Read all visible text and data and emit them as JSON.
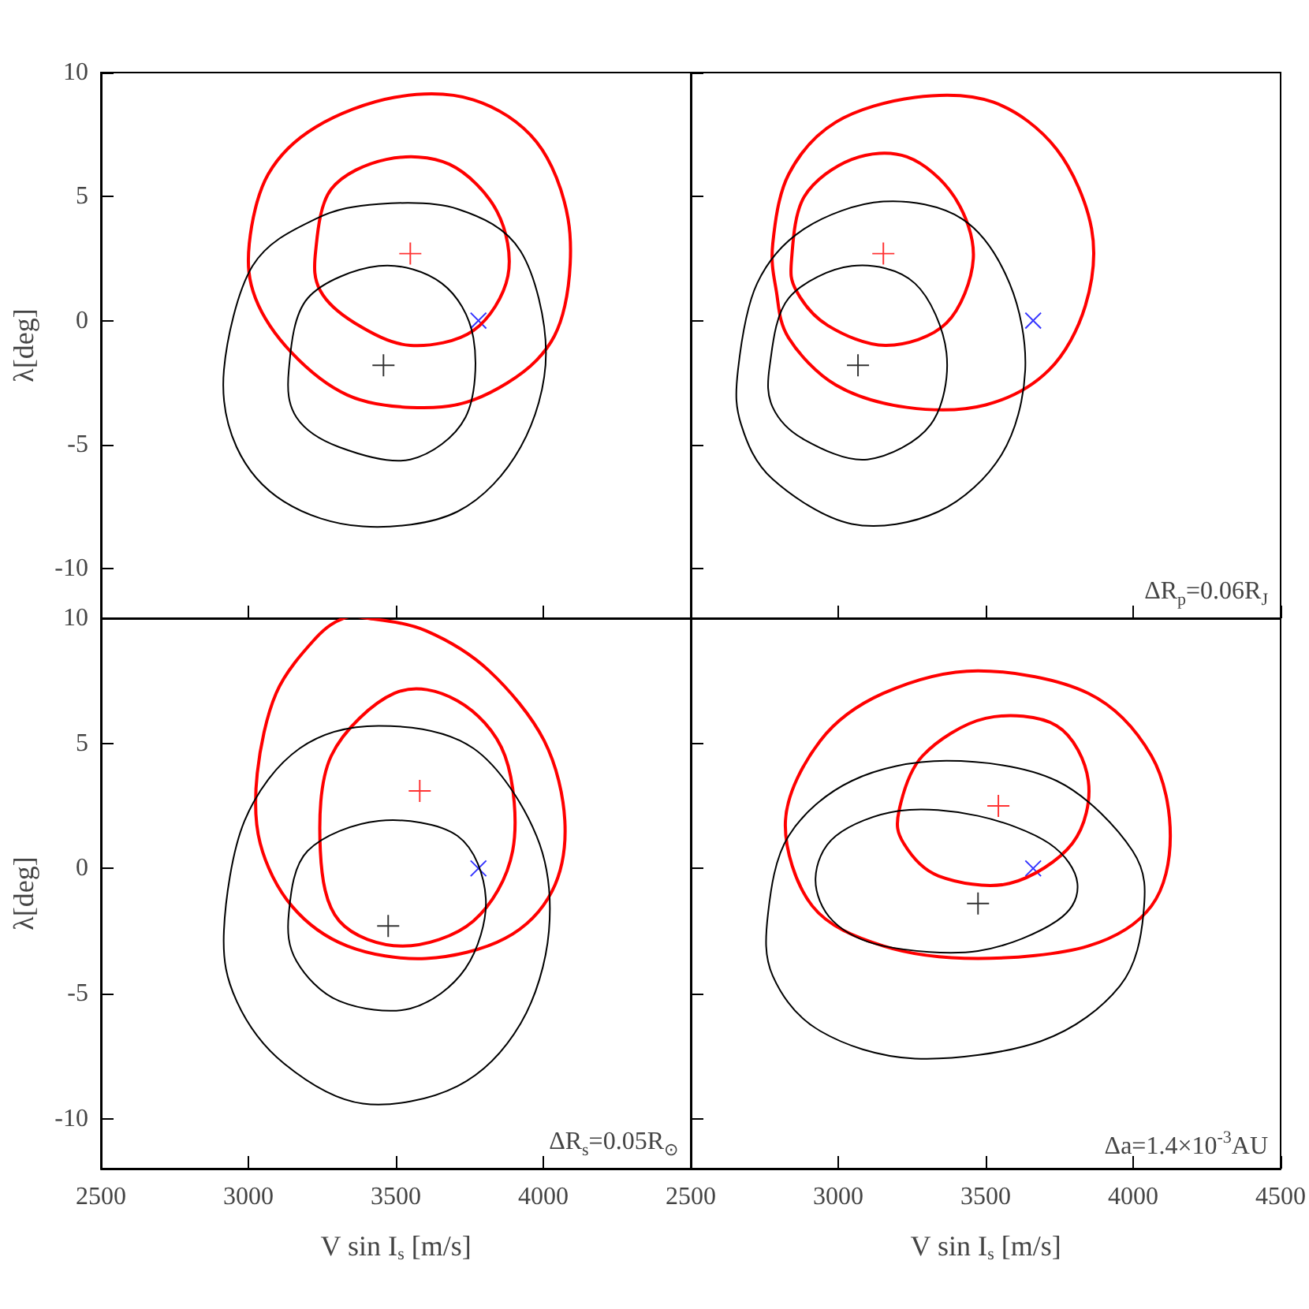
{
  "chart_data": [
    {
      "type": "scatter",
      "ylabel": "λ[deg]",
      "xlim": [
        2500,
        4500
      ],
      "ylim": [
        -12,
        10
      ],
      "xticks": [
        2500,
        3000,
        3500,
        4000,
        4500
      ],
      "yticks": [
        -10,
        -5,
        0,
        5,
        10
      ],
      "tick_labels": "y",
      "series": [
        {
          "marker": "plus",
          "color": "#ff0000",
          "x": [
            3549
          ],
          "values": [
            2.7
          ]
        },
        {
          "marker": "plus",
          "color": "#000000",
          "x": [
            3458
          ],
          "values": [
            -1.8
          ]
        },
        {
          "marker": "cross",
          "color": "#0000ff",
          "x": [
            3780
          ],
          "values": [
            0
          ]
        }
      ]
    },
    {
      "type": "scatter",
      "annotations": [
        "ΔR$_{p}$=0.06R$_{J}$"
      ],
      "xlim": [
        2500,
        4500
      ],
      "ylim": [
        -12,
        10
      ],
      "xticks": [
        2500,
        3000,
        3500,
        4000,
        4500
      ],
      "yticks": [
        -10,
        -5,
        0,
        5,
        10
      ],
      "tick_labels": false,
      "series": [
        {
          "marker": "plus",
          "color": "#ff0000",
          "x": [
            3153
          ],
          "values": [
            2.7
          ]
        },
        {
          "marker": "plus",
          "color": "#000000",
          "x": [
            3067
          ],
          "values": [
            -1.8
          ]
        },
        {
          "marker": "cross",
          "color": "#0000ff",
          "x": [
            3661
          ],
          "values": [
            0
          ]
        }
      ]
    },
    {
      "type": "scatter",
      "xlabel": "V sin I$_{s}$ [m/s]",
      "ylabel": "λ[deg]",
      "annotations": [
        "ΔR$_{s}$=0.05R$_{⊙}$"
      ],
      "xlim": [
        2500,
        4500
      ],
      "ylim": [
        -12,
        10
      ],
      "xticks": [
        2500,
        3000,
        3500,
        4000,
        {
          "value": 4500,
          "label": null
        }
      ],
      "yticks": [
        -10,
        -5,
        0,
        5,
        10
      ],
      "series": [
        {
          "marker": "plus",
          "color": "#ff0000",
          "x": [
            3581
          ],
          "values": [
            3.1
          ]
        },
        {
          "marker": "plus",
          "color": "#000000",
          "x": [
            3474
          ],
          "values": [
            -2.3
          ]
        },
        {
          "marker": "cross",
          "color": "#0000ff",
          "x": [
            3780
          ],
          "values": [
            0
          ]
        }
      ]
    },
    {
      "type": "scatter",
      "xlabel": "V sin I$_{s}$ [m/s]",
      "annotations": [
        "Δa=1.4×10$^{-3}$AU"
      ],
      "xlim": [
        2500,
        4500
      ],
      "ylim": [
        -12,
        10
      ],
      "xticks": [
        2500,
        3000,
        3500,
        4000,
        4500
      ],
      "yticks": [
        -10,
        -5,
        0,
        5,
        10
      ],
      "tick_labels": "x",
      "series": [
        {
          "marker": "plus",
          "color": "#ff0000",
          "x": [
            3543
          ],
          "values": [
            2.5
          ]
        },
        {
          "marker": "plus",
          "color": "#000000",
          "x": [
            3474
          ],
          "values": [
            -1.4
          ]
        },
        {
          "marker": "cross",
          "color": "#0000ff",
          "x": [
            3661
          ],
          "values": [
            0
          ]
        }
      ]
    }
  ]
}
